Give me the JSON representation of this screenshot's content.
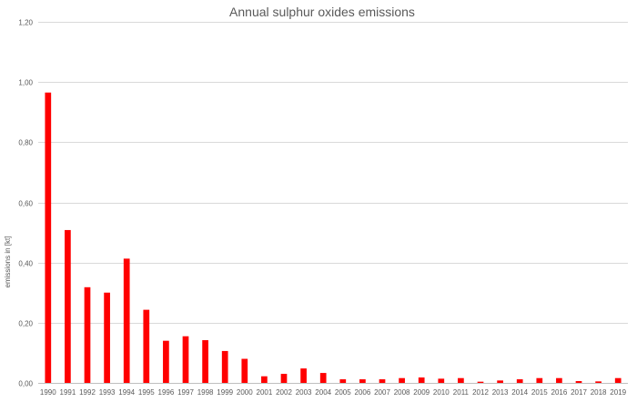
{
  "chart_data": {
    "type": "bar",
    "title": "Annual sulphur oxides emissions",
    "xlabel": "",
    "ylabel": "emissions in [kt]",
    "ylim": [
      0,
      1.2
    ],
    "ytick_values": [
      0,
      0.2,
      0.4,
      0.6,
      0.8,
      1.0,
      1.2
    ],
    "ytick_labels": [
      "0,00",
      "0,20",
      "0,40",
      "0,60",
      "0,80",
      "1,00",
      "1,20"
    ],
    "grid": true,
    "legend": "none",
    "bar_color": "#ff0000",
    "categories": [
      "1990",
      "1991",
      "1992",
      "1993",
      "1994",
      "1995",
      "1996",
      "1997",
      "1998",
      "1999",
      "2000",
      "2001",
      "2002",
      "2003",
      "2004",
      "2005",
      "2006",
      "2007",
      "2008",
      "2009",
      "2010",
      "2011",
      "2012",
      "2013",
      "2014",
      "2015",
      "2016",
      "2017",
      "2018",
      "2019"
    ],
    "values": [
      0.965,
      0.508,
      0.318,
      0.3,
      0.413,
      0.243,
      0.14,
      0.155,
      0.142,
      0.106,
      0.08,
      0.022,
      0.03,
      0.048,
      0.033,
      0.012,
      0.012,
      0.012,
      0.016,
      0.018,
      0.014,
      0.016,
      0.004,
      0.008,
      0.012,
      0.016,
      0.016,
      0.006,
      0.005,
      0.016
    ]
  }
}
